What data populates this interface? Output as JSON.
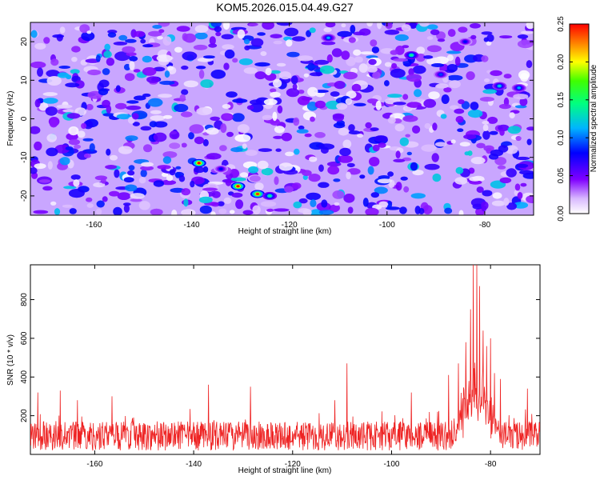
{
  "figure": {
    "title": "KOM5.2026.015.04.49.G27"
  },
  "chart_data": [
    {
      "type": "heatmap",
      "title": "KOM5.2026.015.04.49.G27",
      "xlabel": "Height of straight line (km)",
      "ylabel": "Frequency (Hz)",
      "xlim": [
        -173,
        -70
      ],
      "ylim": [
        -25,
        25
      ],
      "x_ticks": [
        -160,
        -140,
        -120,
        -100,
        -80
      ],
      "y_ticks": [
        -20,
        -10,
        0,
        10,
        20
      ],
      "colorbar": {
        "label": "Normalized spectral amplitude",
        "range": [
          0,
          0.25
        ],
        "ticks": [
          0.0,
          0.05,
          0.1,
          0.15,
          0.2,
          0.25
        ],
        "tick_labels": [
          "0.00",
          "0.05",
          "0.10",
          "0.15",
          "0.20",
          "0.25"
        ],
        "colormap": [
          "#ffffff",
          "#8000ff",
          "#0000ff",
          "#00c0ff",
          "#00ff40",
          "#ffff00",
          "#ff8000",
          "#ff0000"
        ]
      },
      "peaks": [
        {
          "x": -138.5,
          "y": -11.5,
          "amplitude": 0.25
        },
        {
          "x": -130.5,
          "y": -17.5,
          "amplitude": 0.25
        },
        {
          "x": -126.5,
          "y": -19.5,
          "amplitude": 0.24
        },
        {
          "x": -124.0,
          "y": -20.0,
          "amplitude": 0.14
        },
        {
          "x": -95.0,
          "y": 16.5,
          "amplitude": 0.14
        },
        {
          "x": -77.0,
          "y": 8.5,
          "amplitude": 0.12
        },
        {
          "x": -73.0,
          "y": 8.0,
          "amplitude": 0.11
        },
        {
          "x": -112.0,
          "y": 21.0,
          "amplitude": 0.11
        },
        {
          "x": -89.0,
          "y": 11.5,
          "amplitude": 0.09
        },
        {
          "x": -134.0,
          "y": -13.0,
          "amplitude": 0.08
        },
        {
          "x": -127.0,
          "y": -15.5,
          "amplitude": 0.07
        },
        {
          "x": -143.5,
          "y": -7.0,
          "amplitude": 0.07
        },
        {
          "x": -84.0,
          "y": 20.0,
          "amplitude": 0.08
        }
      ]
    },
    {
      "type": "line",
      "xlabel": "Height of straight line (km)",
      "ylabel": "SNR (10 * v/v)",
      "xlim": [
        -173,
        -70
      ],
      "ylim": [
        0,
        980
      ],
      "x_ticks": [
        -160,
        -140,
        -120,
        -100,
        -80
      ],
      "y_ticks": [
        200,
        400,
        600,
        800
      ],
      "color": "#ee2222",
      "baseline": {
        "mean": 100,
        "spread": 80,
        "typical_max": 240
      },
      "spikes": [
        {
          "x": -171.5,
          "y": 320
        },
        {
          "x": -167.0,
          "y": 330
        },
        {
          "x": -163.5,
          "y": 280
        },
        {
          "x": -156.5,
          "y": 300
        },
        {
          "x": -137.0,
          "y": 360
        },
        {
          "x": -128.5,
          "y": 350
        },
        {
          "x": -109.0,
          "y": 470
        },
        {
          "x": -111.5,
          "y": 280
        },
        {
          "x": -96.0,
          "y": 320
        },
        {
          "x": -88.5,
          "y": 410
        },
        {
          "x": -86.5,
          "y": 470
        },
        {
          "x": -85.0,
          "y": 580
        },
        {
          "x": -84.0,
          "y": 750
        },
        {
          "x": -83.5,
          "y": 980
        },
        {
          "x": -82.8,
          "y": 980
        },
        {
          "x": -82.2,
          "y": 870
        },
        {
          "x": -81.5,
          "y": 640
        },
        {
          "x": -80.8,
          "y": 560
        },
        {
          "x": -80.0,
          "y": 600
        },
        {
          "x": -79.2,
          "y": 420
        },
        {
          "x": -78.0,
          "y": 390
        },
        {
          "x": -72.5,
          "y": 340
        }
      ],
      "burst": {
        "x_start": -88,
        "x_end": -78,
        "level": 300
      }
    }
  ]
}
